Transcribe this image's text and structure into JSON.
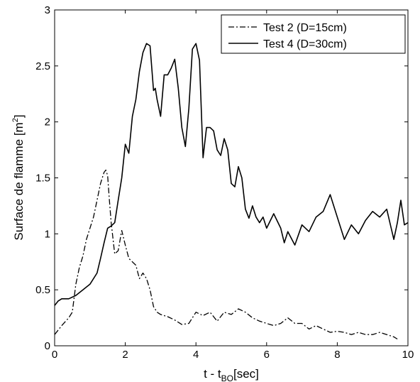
{
  "chart_data": {
    "type": "line",
    "title": "",
    "xlabel": {
      "main": "t - t",
      "sub": "BO",
      "unit": "[sec]"
    },
    "ylabel": {
      "main": "Surface de flamme [m",
      "sup": "2",
      "end": "]"
    },
    "xlim": [
      0,
      10
    ],
    "ylim": [
      0,
      3
    ],
    "xticks": [
      0,
      2,
      4,
      6,
      8,
      10
    ],
    "xtick_labels": [
      "0",
      "2",
      "4",
      "6",
      "8",
      "10"
    ],
    "yticks": [
      0,
      0.5,
      1,
      1.5,
      2,
      2.5,
      3
    ],
    "ytick_labels": [
      "0",
      "0.5",
      "1",
      "1.5",
      "2",
      "2.5",
      "3"
    ],
    "grid": false,
    "legend_position": "top-right",
    "series": [
      {
        "name": "Test 2 (D=15cm)",
        "style": "dash-dot",
        "color": "#000000",
        "x": [
          0,
          0.2,
          0.4,
          0.5,
          0.6,
          0.7,
          0.8,
          0.9,
          1.0,
          1.1,
          1.2,
          1.3,
          1.4,
          1.45,
          1.5,
          1.55,
          1.6,
          1.7,
          1.8,
          1.9,
          2.0,
          2.1,
          2.2,
          2.3,
          2.4,
          2.5,
          2.6,
          2.7,
          2.8,
          2.9,
          3.0,
          3.2,
          3.4,
          3.6,
          3.8,
          4.0,
          4.2,
          4.4,
          4.6,
          4.8,
          5.0,
          5.2,
          5.4,
          5.6,
          5.8,
          6.0,
          6.2,
          6.4,
          6.6,
          6.8,
          7.0,
          7.2,
          7.4,
          7.6,
          7.8,
          8.0,
          8.2,
          8.4,
          8.6,
          8.8,
          9.0,
          9.2,
          9.4,
          9.6,
          9.7
        ],
        "y": [
          0.1,
          0.18,
          0.25,
          0.3,
          0.55,
          0.7,
          0.8,
          0.95,
          1.05,
          1.15,
          1.3,
          1.45,
          1.55,
          1.57,
          1.52,
          1.3,
          1.1,
          0.82,
          0.85,
          1.03,
          0.9,
          0.78,
          0.75,
          0.72,
          0.6,
          0.65,
          0.6,
          0.5,
          0.35,
          0.3,
          0.28,
          0.26,
          0.23,
          0.19,
          0.2,
          0.3,
          0.27,
          0.3,
          0.22,
          0.3,
          0.28,
          0.33,
          0.3,
          0.25,
          0.22,
          0.2,
          0.18,
          0.2,
          0.25,
          0.2,
          0.2,
          0.15,
          0.18,
          0.15,
          0.12,
          0.13,
          0.12,
          0.1,
          0.12,
          0.1,
          0.1,
          0.12,
          0.1,
          0.08,
          0.06
        ]
      },
      {
        "name": "Test 4 (D=30cm)",
        "style": "solid",
        "color": "#000000",
        "x": [
          0,
          0.1,
          0.2,
          0.4,
          0.6,
          0.8,
          1.0,
          1.2,
          1.3,
          1.4,
          1.5,
          1.6,
          1.7,
          1.8,
          1.9,
          2.0,
          2.1,
          2.2,
          2.3,
          2.4,
          2.5,
          2.6,
          2.7,
          2.8,
          2.85,
          2.9,
          3.0,
          3.1,
          3.2,
          3.3,
          3.4,
          3.5,
          3.6,
          3.7,
          3.8,
          3.9,
          4.0,
          4.1,
          4.2,
          4.3,
          4.4,
          4.5,
          4.6,
          4.7,
          4.8,
          4.9,
          5.0,
          5.1,
          5.2,
          5.3,
          5.4,
          5.5,
          5.6,
          5.7,
          5.8,
          5.9,
          6.0,
          6.2,
          6.4,
          6.5,
          6.6,
          6.8,
          7.0,
          7.2,
          7.4,
          7.6,
          7.8,
          8.0,
          8.2,
          8.4,
          8.6,
          8.8,
          9.0,
          9.2,
          9.4,
          9.6,
          9.7,
          9.8,
          9.9,
          10.0
        ],
        "y": [
          0.36,
          0.4,
          0.42,
          0.42,
          0.45,
          0.5,
          0.55,
          0.65,
          0.78,
          0.92,
          1.05,
          1.07,
          1.1,
          1.3,
          1.5,
          1.8,
          1.72,
          2.05,
          2.2,
          2.45,
          2.62,
          2.7,
          2.68,
          2.28,
          2.3,
          2.2,
          2.05,
          2.42,
          2.42,
          2.48,
          2.56,
          2.3,
          1.95,
          1.78,
          2.12,
          2.65,
          2.7,
          2.55,
          1.68,
          1.95,
          1.95,
          1.92,
          1.75,
          1.7,
          1.85,
          1.75,
          1.45,
          1.42,
          1.6,
          1.5,
          1.22,
          1.14,
          1.25,
          1.15,
          1.1,
          1.15,
          1.05,
          1.18,
          1.05,
          0.92,
          1.02,
          0.9,
          1.08,
          1.02,
          1.15,
          1.2,
          1.35,
          1.15,
          0.95,
          1.08,
          1.0,
          1.12,
          1.2,
          1.15,
          1.22,
          0.95,
          1.1,
          1.3,
          1.08,
          1.1
        ]
      }
    ]
  }
}
